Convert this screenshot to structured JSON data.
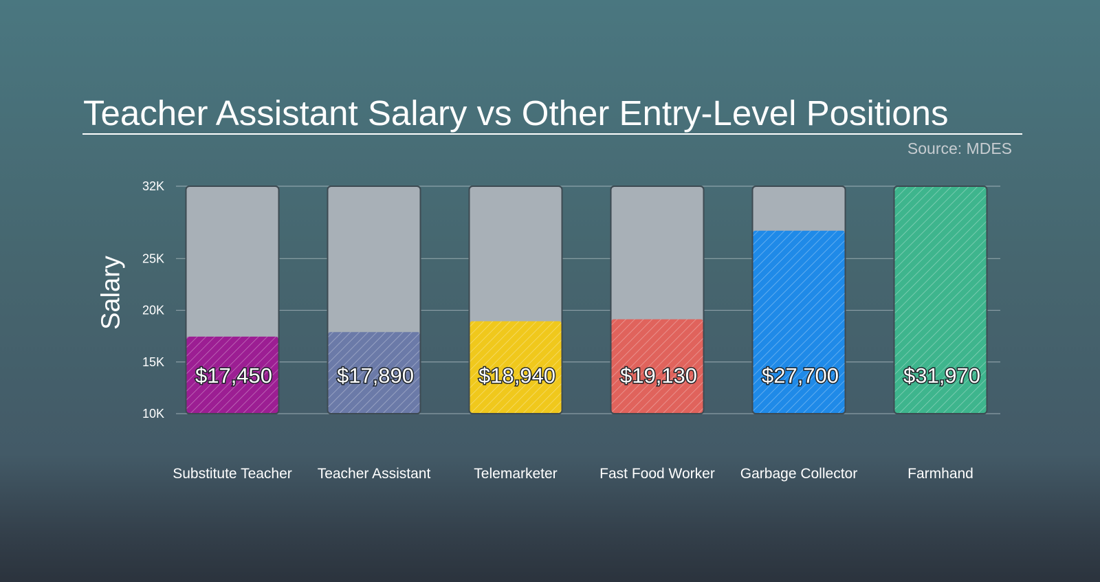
{
  "chart_data": {
    "type": "bar",
    "title": "Teacher Assistant Salary vs Other Entry-Level Positions",
    "source": "Source: MDES",
    "ylabel": "Salary",
    "xlabel": "",
    "ylim": [
      10000,
      32000
    ],
    "yticks": [
      10000,
      15000,
      20000,
      25000,
      32000
    ],
    "ytick_labels": [
      "10K",
      "15K",
      "20K",
      "25K",
      "32K"
    ],
    "grid": true,
    "categories": [
      "Substitute Teacher",
      "Teacher Assistant",
      "Telemarketer",
      "Fast Food Worker",
      "Garbage Collector",
      "Farmhand"
    ],
    "values": [
      17450,
      17890,
      18940,
      19130,
      27700,
      31970
    ],
    "value_labels": [
      "$17,450",
      "$17,890",
      "$18,940",
      "$19,130",
      "$27,700",
      "$31,970"
    ],
    "colors": [
      "#9c1e93",
      "#6b7aa8",
      "#f0c81c",
      "#e0635c",
      "#1f8ae8",
      "#3eb58d"
    ],
    "background_bar_color": "#a8b0b7",
    "pattern": "diagonal-hatch"
  }
}
